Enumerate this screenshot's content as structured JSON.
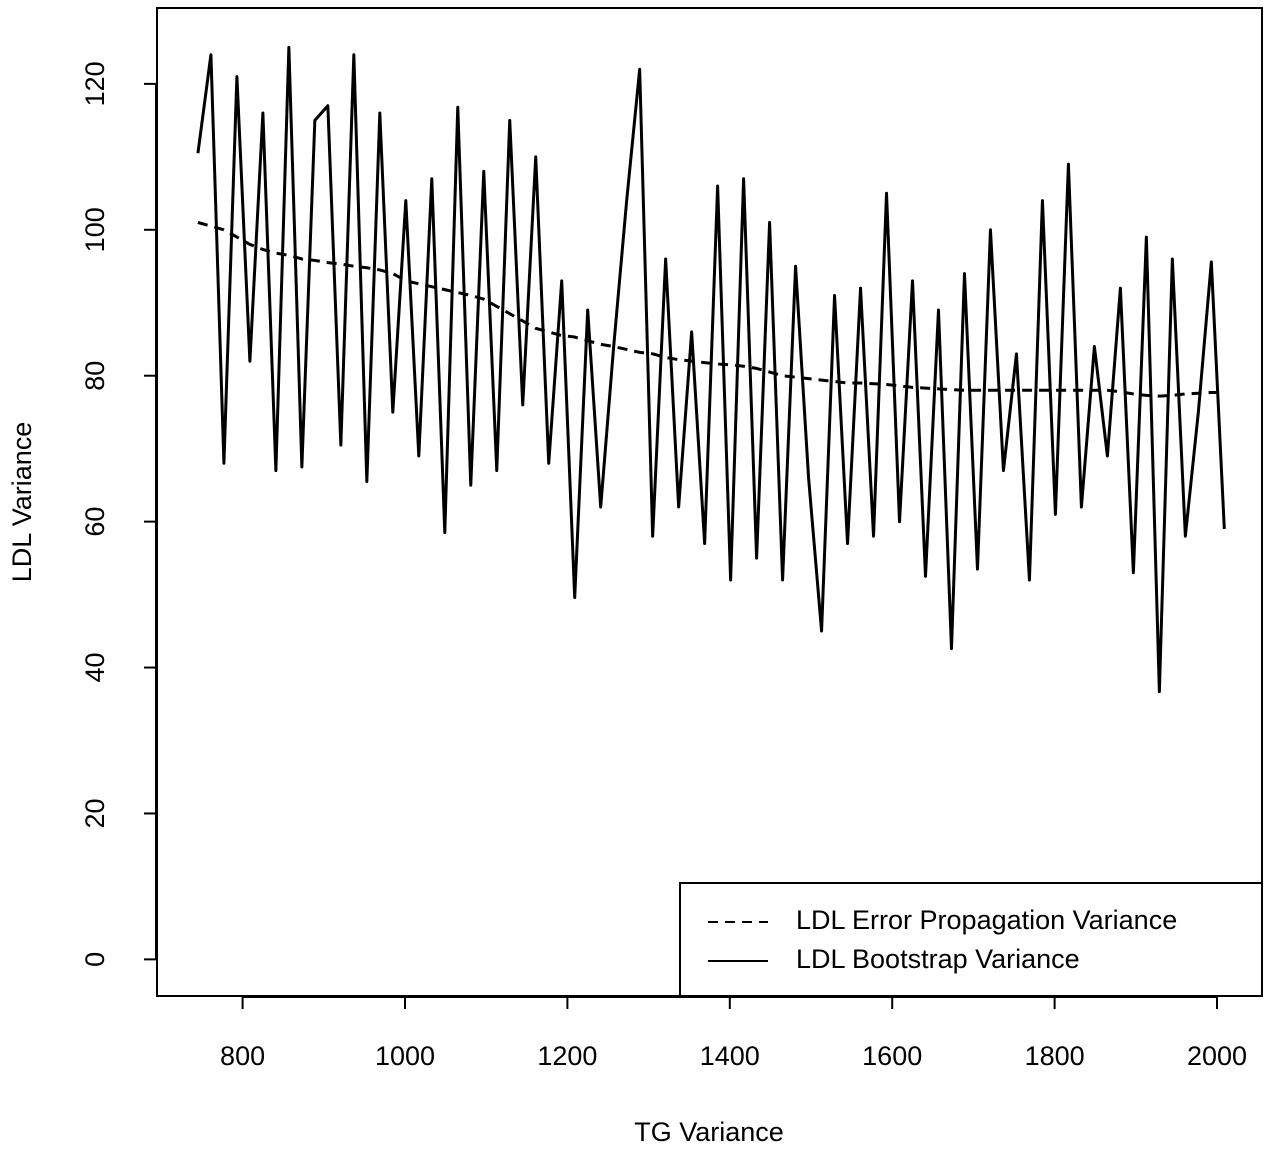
{
  "chart_data": {
    "type": "line",
    "x_label": "TG Variance",
    "y_label": "LDL Variance",
    "xlim": [
      694.6,
      2055.4
    ],
    "ylim": [
      -5.02,
      130.4
    ],
    "xticks": [
      800,
      1000,
      1200,
      1400,
      1600,
      1800,
      2000
    ],
    "yticks": [
      0,
      20,
      40,
      60,
      80,
      100,
      120
    ],
    "legend": "bottomright",
    "x": [
      745,
      761,
      777,
      793,
      809,
      825,
      841,
      857,
      873,
      889,
      905,
      921,
      937,
      953,
      969,
      985,
      1001,
      1017,
      1033,
      1049,
      1065,
      1081,
      1097,
      1113,
      1129,
      1145,
      1161,
      1177,
      1193,
      1209,
      1225,
      1241,
      1257,
      1273,
      1289,
      1305,
      1321,
      1337,
      1353,
      1369,
      1385,
      1401,
      1417,
      1433,
      1449,
      1465,
      1481,
      1497,
      1513,
      1529,
      1545,
      1561,
      1577,
      1593,
      1609,
      1625,
      1641,
      1657,
      1673,
      1689,
      1705,
      1721,
      1737,
      1753,
      1769,
      1785,
      1801,
      1817,
      1833,
      1849,
      1865,
      1881,
      1897,
      1913,
      1929,
      1945,
      1961,
      1977,
      1993,
      2009
    ],
    "series": [
      {
        "name": "LDL Error Propagation Variance",
        "color": "#000000",
        "style": "dashed",
        "values": [
          101,
          100.5,
          100,
          99,
          98,
          97.3,
          96.8,
          96.5,
          96,
          95.8,
          95.5,
          95.3,
          95,
          94.8,
          94.5,
          94,
          93,
          92.6,
          92.2,
          91.8,
          91.4,
          91,
          90.5,
          89.5,
          88.5,
          87.5,
          86.5,
          86,
          85.5,
          85.3,
          84.8,
          84.3,
          84,
          83.6,
          83.2,
          83,
          82.5,
          82.2,
          82,
          81.8,
          81.6,
          81.5,
          81.3,
          81,
          80.5,
          80,
          79.8,
          79.6,
          79.4,
          79.2,
          79,
          79,
          78.9,
          78.8,
          78.6,
          78.4,
          78.3,
          78.2,
          78.1,
          78,
          78,
          78,
          78,
          78,
          78,
          78,
          78,
          78,
          78,
          78,
          78,
          77.8,
          77.5,
          77.3,
          77.2,
          77.3,
          77.5,
          77.6,
          77.7,
          77.7
        ]
      },
      {
        "name": "LDL Bootstrap Variance",
        "color": "#000000",
        "style": "solid",
        "values": [
          110.5,
          124,
          68,
          121,
          82,
          116,
          67,
          125,
          67.5,
          115,
          117,
          70.5,
          124,
          65.5,
          116,
          75,
          104,
          69,
          107,
          58.5,
          116.8,
          65,
          108,
          67,
          115,
          76,
          110,
          68,
          93,
          49.6,
          89,
          62,
          84,
          104,
          122,
          58,
          96,
          62,
          86,
          57,
          106,
          52,
          107,
          55,
          101,
          52,
          95,
          66,
          45,
          91,
          57,
          92,
          58,
          105,
          60,
          93,
          52.5,
          89,
          42.6,
          94,
          53.5,
          100,
          67,
          83,
          52,
          104,
          61,
          109,
          62,
          84,
          69,
          92,
          53,
          99,
          36.7,
          96,
          58,
          75,
          95.6,
          59
        ]
      }
    ]
  }
}
